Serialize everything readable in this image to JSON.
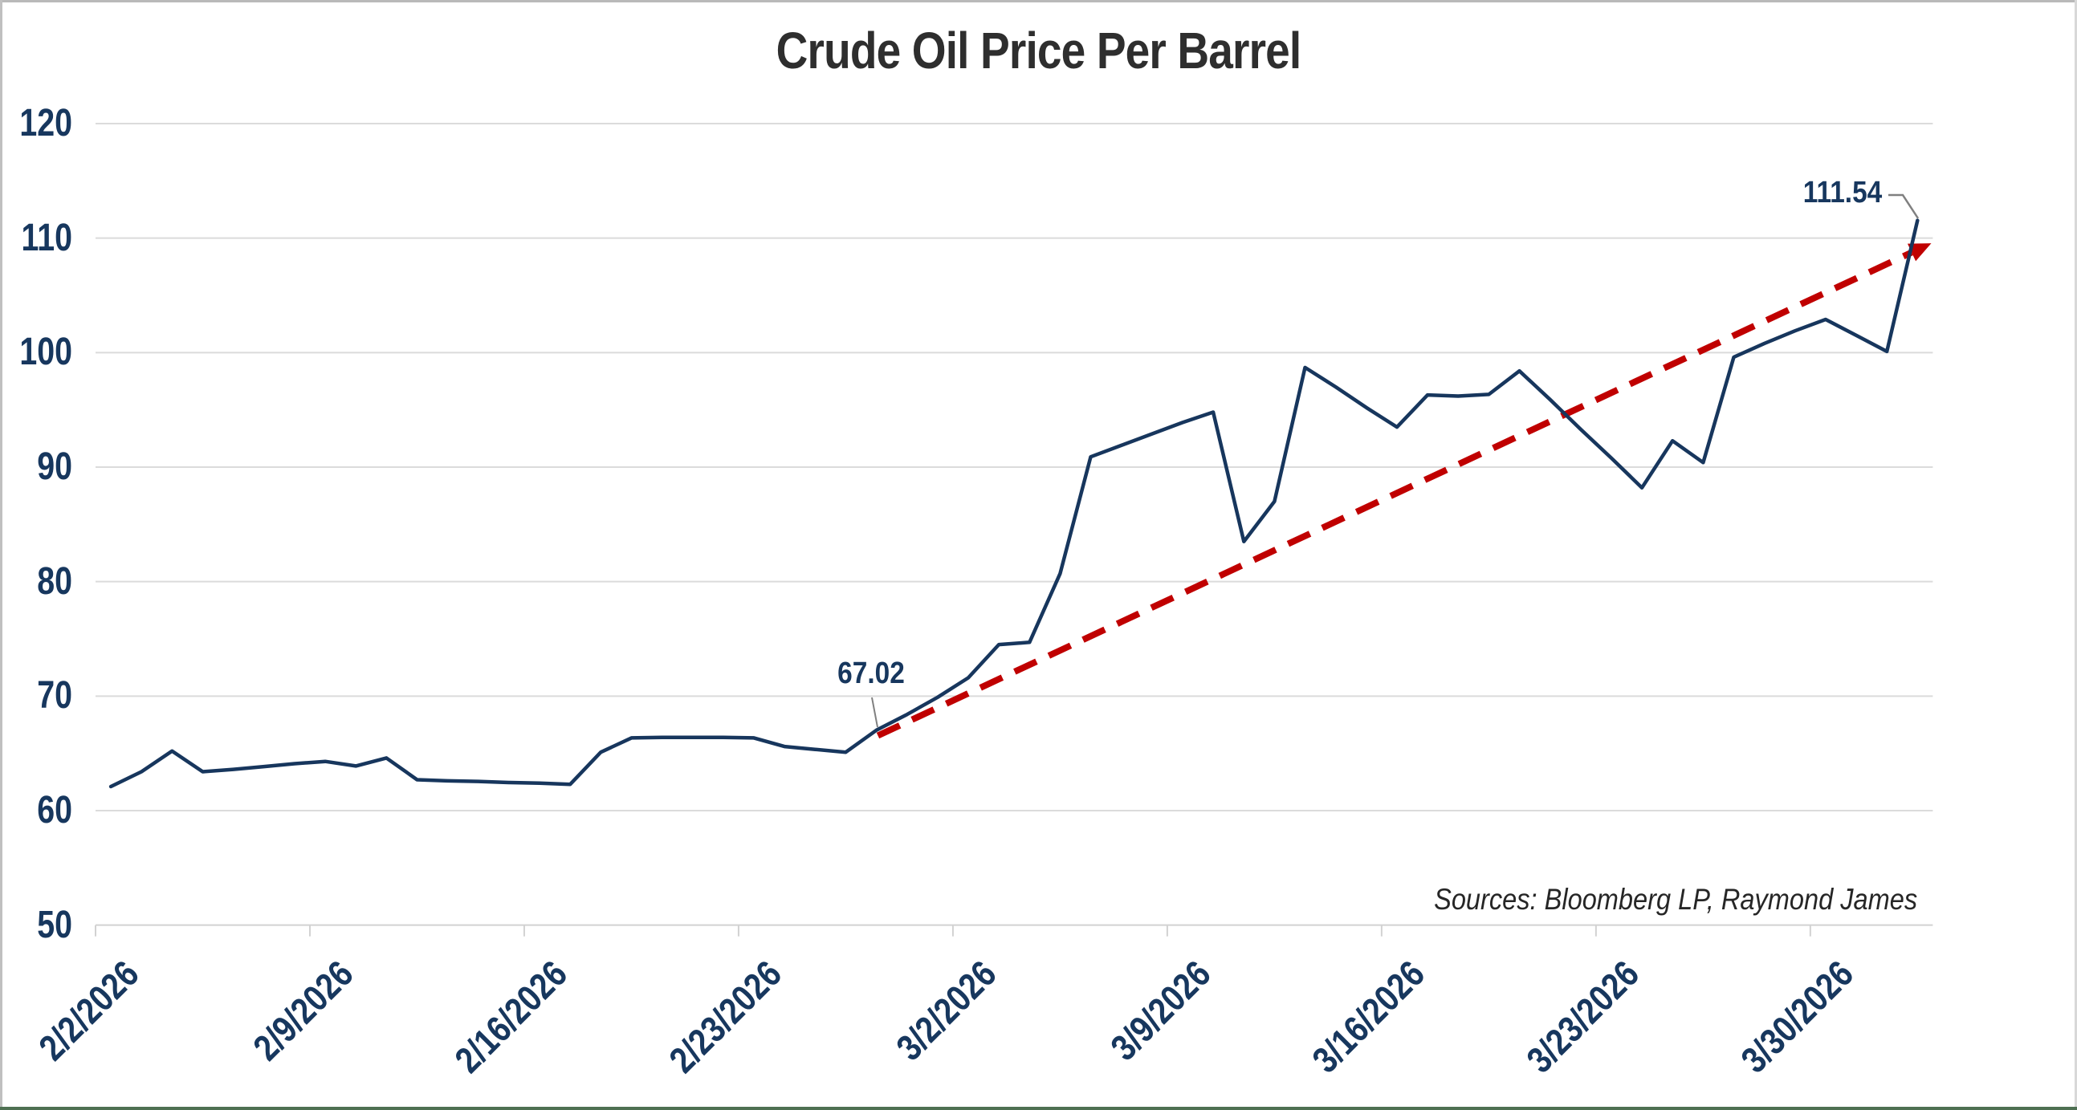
{
  "title": "Crude Oil Price Per Barrel",
  "source_note": "Sources: Bloomberg LP, Raymond James",
  "colors": {
    "series_line": "#17365d",
    "trend_line": "#c00000",
    "axis_text": "#17375e",
    "title_text": "#2e2e2e",
    "source_text": "#262626",
    "gridline": "#dbdbdb",
    "axis_line": "#d2d2d2",
    "leader_line": "#808080"
  },
  "chart_data": {
    "type": "line",
    "title": "Crude Oil Price Per Barrel",
    "xlabel": "",
    "ylabel": "",
    "ylim": [
      50,
      120
    ],
    "y_ticks": [
      50,
      60,
      70,
      80,
      90,
      100,
      110,
      120
    ],
    "grid": "horizontal",
    "legend": "none",
    "x_tick_labels": [
      "2/2/2026",
      "2/9/2026",
      "2/16/2026",
      "2/23/2026",
      "3/2/2026",
      "3/9/2026",
      "3/16/2026",
      "3/23/2026",
      "3/30/2026"
    ],
    "x": [
      "2/2/2026",
      "2/3/2026",
      "2/4/2026",
      "2/5/2026",
      "2/6/2026",
      "2/7/2026",
      "2/8/2026",
      "2/9/2026",
      "2/10/2026",
      "2/11/2026",
      "2/12/2026",
      "2/13/2026",
      "2/14/2026",
      "2/15/2026",
      "2/16/2026",
      "2/17/2026",
      "2/18/2026",
      "2/19/2026",
      "2/20/2026",
      "2/21/2026",
      "2/22/2026",
      "2/23/2026",
      "2/24/2026",
      "2/25/2026",
      "2/26/2026",
      "2/27/2026",
      "2/28/2026",
      "3/1/2026",
      "3/2/2026",
      "3/3/2026",
      "3/4/2026",
      "3/5/2026",
      "3/6/2026",
      "3/7/2026",
      "3/8/2026",
      "3/9/2026",
      "3/10/2026",
      "3/11/2026",
      "3/12/2026",
      "3/13/2026",
      "3/14/2026",
      "3/15/2026",
      "3/16/2026",
      "3/17/2026",
      "3/18/2026",
      "3/19/2026",
      "3/20/2026",
      "3/21/2026",
      "3/22/2026",
      "3/23/2026",
      "3/24/2026",
      "3/25/2026",
      "3/26/2026",
      "3/27/2026",
      "3/28/2026",
      "3/29/2026",
      "3/30/2026",
      "3/31/2026",
      "4/1/2026",
      "4/2/2026"
    ],
    "series": [
      {
        "name": "Crude oil price per barrel (USD)",
        "color": "#17365d",
        "values": [
          62.1,
          63.4,
          65.2,
          63.4,
          63.6,
          63.85,
          64.1,
          64.3,
          63.9,
          64.6,
          62.7,
          62.6,
          62.55,
          62.45,
          62.4,
          62.3,
          65.1,
          66.35,
          66.4,
          66.4,
          66.4,
          66.35,
          65.6,
          65.35,
          65.1,
          67.02,
          68.4,
          69.9,
          71.6,
          74.5,
          74.7,
          80.7,
          90.9,
          91.9,
          92.9,
          93.9,
          94.8,
          83.5,
          87.0,
          98.7,
          97.0,
          95.2,
          93.5,
          96.3,
          96.2,
          96.35,
          98.4,
          95.9,
          93.3,
          90.8,
          88.2,
          92.3,
          90.4,
          99.6,
          100.8,
          101.9,
          102.9,
          101.5,
          100.1,
          111.54
        ]
      }
    ],
    "trend_line": {
      "style": "dashed",
      "color": "#c00000",
      "arrow_at_end": true,
      "from": {
        "index": 25.05,
        "value": 66.55
      },
      "to": {
        "index": 59.45,
        "value": 109.55
      }
    },
    "data_labels": [
      {
        "index": 25,
        "x": "2/27/2026",
        "label": "67.02",
        "value": 67.02
      },
      {
        "index": 59,
        "x": "4/2/2026",
        "label": "111.54",
        "value": 111.54
      }
    ]
  }
}
